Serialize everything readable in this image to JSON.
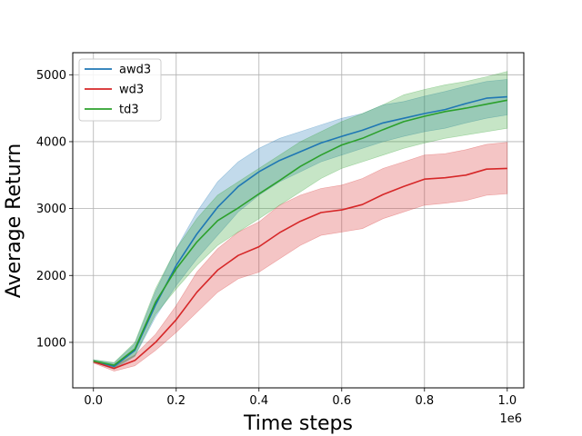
{
  "chart_data": {
    "type": "line",
    "title": "",
    "xlabel": "Time steps",
    "ylabel": "Average Return",
    "x_offset_label": "1e6",
    "xlim": [
      -0.05,
      1.04
    ],
    "ylim": [
      320,
      5330
    ],
    "x_ticks": [
      0.0,
      0.2,
      0.4,
      0.6,
      0.8,
      1.0
    ],
    "x_tick_labels": [
      "0.0",
      "0.2",
      "0.4",
      "0.6",
      "0.8",
      "1.0"
    ],
    "y_ticks": [
      1000,
      2000,
      3000,
      4000,
      5000
    ],
    "y_tick_labels": [
      "1000",
      "2000",
      "3000",
      "4000",
      "5000"
    ],
    "grid": true,
    "legend_position": "top-left",
    "x": [
      0.0,
      0.05,
      0.1,
      0.15,
      0.2,
      0.25,
      0.3,
      0.35,
      0.4,
      0.45,
      0.5,
      0.55,
      0.6,
      0.65,
      0.7,
      0.75,
      0.8,
      0.85,
      0.9,
      0.95,
      1.0
    ],
    "series": [
      {
        "name": "awd3",
        "color": "#1f77b4",
        "values": [
          720,
          640,
          880,
          1560,
          2150,
          2620,
          3020,
          3330,
          3550,
          3720,
          3850,
          3980,
          4080,
          4170,
          4280,
          4350,
          4420,
          4480,
          4570,
          4650,
          4670
        ],
        "lower": [
          700,
          600,
          790,
          1380,
          1850,
          2250,
          2600,
          2950,
          3200,
          3400,
          3550,
          3700,
          3800,
          3900,
          4000,
          4080,
          4150,
          4200,
          4280,
          4350,
          4400
        ],
        "upper": [
          740,
          690,
          980,
          1760,
          2400,
          2950,
          3400,
          3700,
          3900,
          4050,
          4150,
          4250,
          4350,
          4420,
          4550,
          4600,
          4680,
          4750,
          4830,
          4900,
          4930
        ]
      },
      {
        "name": "wd3",
        "color": "#d62728",
        "values": [
          710,
          610,
          730,
          1000,
          1340,
          1750,
          2080,
          2300,
          2430,
          2640,
          2810,
          2940,
          2980,
          3060,
          3210,
          3330,
          3440,
          3460,
          3500,
          3590,
          3600
        ],
        "lower": [
          690,
          570,
          650,
          880,
          1150,
          1450,
          1750,
          1950,
          2050,
          2250,
          2450,
          2600,
          2650,
          2700,
          2850,
          2950,
          3050,
          3080,
          3120,
          3200,
          3220
        ],
        "upper": [
          730,
          650,
          810,
          1120,
          1550,
          2050,
          2400,
          2650,
          2800,
          3050,
          3200,
          3300,
          3350,
          3450,
          3600,
          3700,
          3800,
          3820,
          3880,
          3960,
          3990
        ]
      },
      {
        "name": "td3",
        "color": "#2ca02c",
        "values": [
          720,
          660,
          900,
          1600,
          2100,
          2500,
          2820,
          3010,
          3220,
          3420,
          3630,
          3800,
          3950,
          4050,
          4180,
          4300,
          4380,
          4450,
          4500,
          4560,
          4620
        ],
        "lower": [
          700,
          620,
          800,
          1420,
          1800,
          2150,
          2450,
          2650,
          2850,
          3050,
          3250,
          3450,
          3600,
          3700,
          3800,
          3900,
          3980,
          4050,
          4100,
          4150,
          4200
        ],
        "upper": [
          740,
          700,
          1000,
          1800,
          2400,
          2850,
          3200,
          3400,
          3600,
          3800,
          4000,
          4150,
          4300,
          4420,
          4550,
          4700,
          4780,
          4850,
          4900,
          4970,
          5050
        ]
      }
    ]
  }
}
